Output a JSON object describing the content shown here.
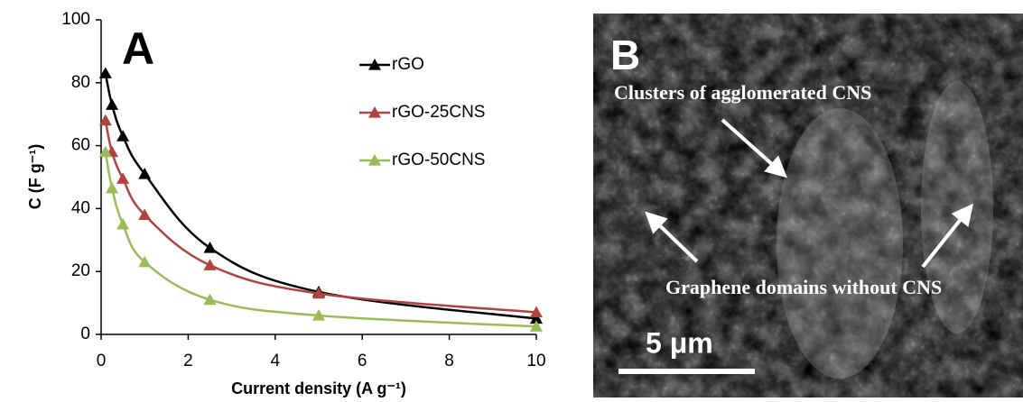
{
  "chart_data": {
    "type": "line",
    "panel_label": "A",
    "x_label": "Current density (A g⁻¹)",
    "y_label": "C (F g⁻¹)",
    "x": [
      0.1,
      0.25,
      0.5,
      1,
      2.5,
      5,
      10
    ],
    "series": [
      {
        "name": "rGO",
        "color": "#000000",
        "values": [
          83,
          73,
          63,
          51,
          27.5,
          13.5,
          5
        ]
      },
      {
        "name": "rGO-25CNS",
        "color": "#b0433f",
        "values": [
          68,
          58,
          49.5,
          38,
          22,
          13,
          7
        ]
      },
      {
        "name": "rGO-50CNS",
        "color": "#9bbb59",
        "values": [
          58,
          46.5,
          35,
          23,
          11,
          6,
          2.5
        ]
      }
    ],
    "xlim": [
      0,
      10
    ],
    "ylim": [
      0,
      100
    ],
    "xticks": [
      0,
      2,
      4,
      6,
      8,
      10
    ],
    "yticks": [
      0,
      20,
      40,
      60,
      80,
      100
    ],
    "grid": false,
    "legend": "top-right"
  },
  "panel_b": {
    "label": "B",
    "annotation_top": "Clusters of agglomerated CNS",
    "annotation_bottom": "Graphene domains without CNS",
    "scale_bar": "5 μm"
  }
}
